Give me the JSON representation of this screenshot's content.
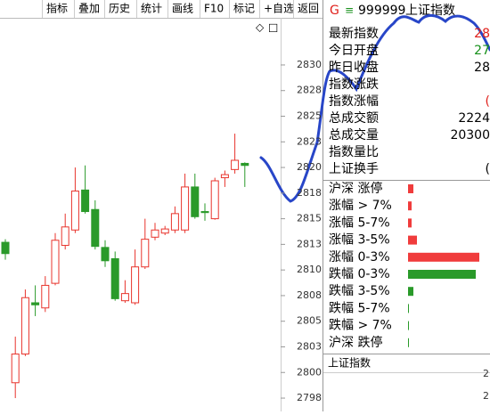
{
  "toolbar": {
    "buttons": [
      "指标",
      "叠加",
      "历史",
      "统计",
      "画线",
      "F10",
      "标记",
      "+自选",
      "返回"
    ]
  },
  "chart_icons": [
    "◇",
    "□"
  ],
  "quote_header": {
    "badge": "G",
    "menu": "≡",
    "code": "999999",
    "name": "上证指数"
  },
  "quote_rows": [
    {
      "label": "最新指数",
      "value": "28",
      "color": "#e0201b"
    },
    {
      "label": "今日开盘",
      "value": "27",
      "color": "#16901a"
    },
    {
      "label": "昨日收盘",
      "value": "28",
      "color": "#000000"
    },
    {
      "label": "指数涨跌"
    },
    {
      "label": "指数涨幅",
      "value": "(",
      "color": "#e0201b"
    },
    {
      "label": "总成交额",
      "value": "2224",
      "color": "#000000"
    },
    {
      "label": "总成交量",
      "value": "20300",
      "color": "#000000"
    },
    {
      "label": "指数量比"
    },
    {
      "label": "上证换手",
      "value": "(",
      "color": "#000000"
    }
  ],
  "chart_data": [
    {
      "type": "candlestick",
      "up_color": "#e8342c",
      "down_color": "#2a9a2a",
      "ylim": [
        2834.6,
        2796.2
      ],
      "yticks": [
        2830,
        {
          "value": 2827.5,
          "label": "2828"
        },
        2825,
        {
          "value": 2822.5,
          "label": "2823"
        },
        2820,
        {
          "value": 2817.5,
          "label": "2818"
        },
        2815,
        {
          "value": 2812.5,
          "label": "2813"
        },
        2810,
        {
          "value": 2807.5,
          "label": "2808"
        },
        2805,
        {
          "value": 2802.5,
          "label": "2803"
        },
        2800,
        {
          "value": 2797.5,
          "label": "2798"
        }
      ],
      "open": [
        2812.7,
        2799.0,
        2801.8,
        2806.8,
        2806.3,
        2808.7,
        2812.4,
        2813.9,
        2817.8,
        2815.9,
        2812.2,
        2811.1,
        2807.0,
        2806.8,
        2810.3,
        2813.2,
        2813.6,
        2813.9,
        2813.9,
        2818.1,
        2815.7,
        2815.0,
        2819.0,
        2819.8,
        2820.4
      ],
      "high": [
        2813.0,
        2803.5,
        2808.1,
        2808.5,
        2809.4,
        2813.6,
        2815.5,
        2820.0,
        2820.2,
        2816.8,
        2812.9,
        2811.8,
        2809.0,
        2812.0,
        2815.0,
        2814.6,
        2814.3,
        2816.2,
        2819.4,
        2819.4,
        2816.5,
        2819.0,
        2819.7,
        2823.3,
        2820.5
      ],
      "low": [
        2811.0,
        2797.5,
        2801.6,
        2805.5,
        2805.9,
        2808.5,
        2812.0,
        2813.6,
        2815.5,
        2812.0,
        2810.3,
        2807.0,
        2806.8,
        2806.6,
        2810.1,
        2812.9,
        2813.4,
        2813.6,
        2813.6,
        2815.0,
        2814.8,
        2814.9,
        2818.1,
        2819.4,
        2818.1
      ],
      "close": [
        2811.6,
        2801.8,
        2807.3,
        2806.6,
        2808.5,
        2812.9,
        2814.2,
        2817.7,
        2815.7,
        2812.3,
        2810.9,
        2807.2,
        2807.7,
        2810.3,
        2813.0,
        2813.9,
        2814.0,
        2815.5,
        2818.1,
        2815.2,
        2815.6,
        2818.7,
        2819.3,
        2820.7,
        2820.2
      ]
    },
    {
      "type": "bar",
      "categories": [
        "沪深 涨停",
        "涨幅 > 7%",
        "涨幅 5-7%",
        "涨幅 3-5%",
        "涨幅 0-3%",
        "跌幅 0-3%",
        "跌幅 3-5%",
        "跌幅 5-7%",
        "跌幅 > 7%",
        "沪深 跌停"
      ],
      "values": [
        6,
        4,
        4,
        10,
        80,
        76,
        6,
        1,
        1,
        1
      ],
      "colors": [
        "#f03c3c",
        "#f03c3c",
        "#f03c3c",
        "#f03c3c",
        "#f03c3c",
        "#2a9a2a",
        "#2a9a2a",
        "#2a9a2a",
        "#2a9a2a",
        "#2a9a2a"
      ]
    }
  ],
  "footer": {
    "title": "上证指数",
    "ticks": [
      "2",
      "2"
    ]
  }
}
